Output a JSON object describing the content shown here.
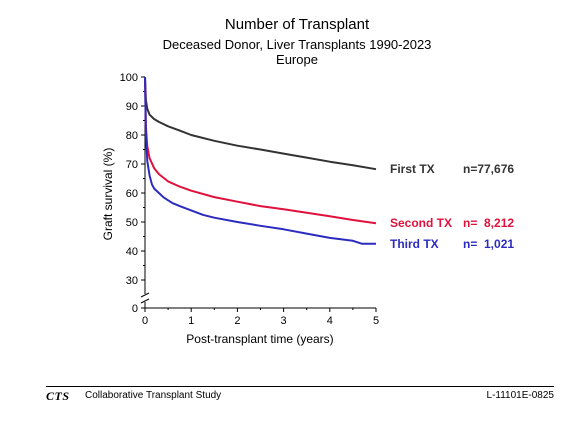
{
  "chart_data": {
    "type": "line",
    "title": "Number of Transplant",
    "subtitle": [
      "Deceased Donor, Liver Transplants 1990-2023",
      "Europe"
    ],
    "xlabel": "Post-transplant time (years)",
    "ylabel": "Graft survival (%)",
    "xlim": [
      0,
      5
    ],
    "ylim": [
      0,
      100
    ],
    "x_ticks": [
      0,
      1,
      2,
      3,
      4,
      5
    ],
    "y_ticks": [
      0,
      30,
      40,
      50,
      60,
      70,
      80,
      90,
      100
    ],
    "axis_break": true,
    "grid": false,
    "legend_placement": "right",
    "series": [
      {
        "name": "First TX",
        "n_label": "n=77,676",
        "color": "#333333",
        "x": [
          0,
          0.02,
          0.05,
          0.1,
          0.2,
          0.3,
          0.5,
          0.75,
          1,
          1.5,
          2,
          2.5,
          3,
          3.5,
          4,
          4.5,
          5
        ],
        "y": [
          100,
          92,
          89,
          87,
          85.5,
          84.5,
          83,
          81.5,
          80,
          78,
          76.3,
          75,
          73.6,
          72.2,
          70.8,
          69.6,
          68.2
        ]
      },
      {
        "name": "Second TX",
        "n_label": "n=  8,212",
        "color": "#e0113c",
        "x": [
          0,
          0.02,
          0.05,
          0.1,
          0.2,
          0.3,
          0.5,
          0.75,
          1,
          1.5,
          2,
          2.5,
          3,
          3.5,
          4,
          4.5,
          5
        ],
        "y": [
          100,
          83,
          76,
          72,
          68.5,
          66.5,
          64,
          62.2,
          60.8,
          58.6,
          57,
          55.5,
          54.4,
          53.2,
          52,
          50.7,
          49.6
        ]
      },
      {
        "name": "Third TX",
        "n_label": "n=  1,021",
        "color": "#2b2bbf",
        "x": [
          0,
          0.02,
          0.05,
          0.1,
          0.15,
          0.2,
          0.3,
          0.4,
          0.5,
          0.6,
          0.75,
          1,
          1.25,
          1.5,
          2,
          2.5,
          3,
          3.5,
          4,
          4.5,
          4.7,
          5
        ],
        "y": [
          100,
          80,
          71,
          66,
          63,
          61.5,
          60,
          58.5,
          57.5,
          56.5,
          55.5,
          54,
          52.5,
          51.5,
          50,
          48.7,
          47.5,
          46,
          44.5,
          43.5,
          42.5,
          42.5
        ]
      }
    ]
  },
  "footer": {
    "logo": "CTS",
    "organization": "Collaborative Transplant Study",
    "code": "L-11101E-0825"
  }
}
